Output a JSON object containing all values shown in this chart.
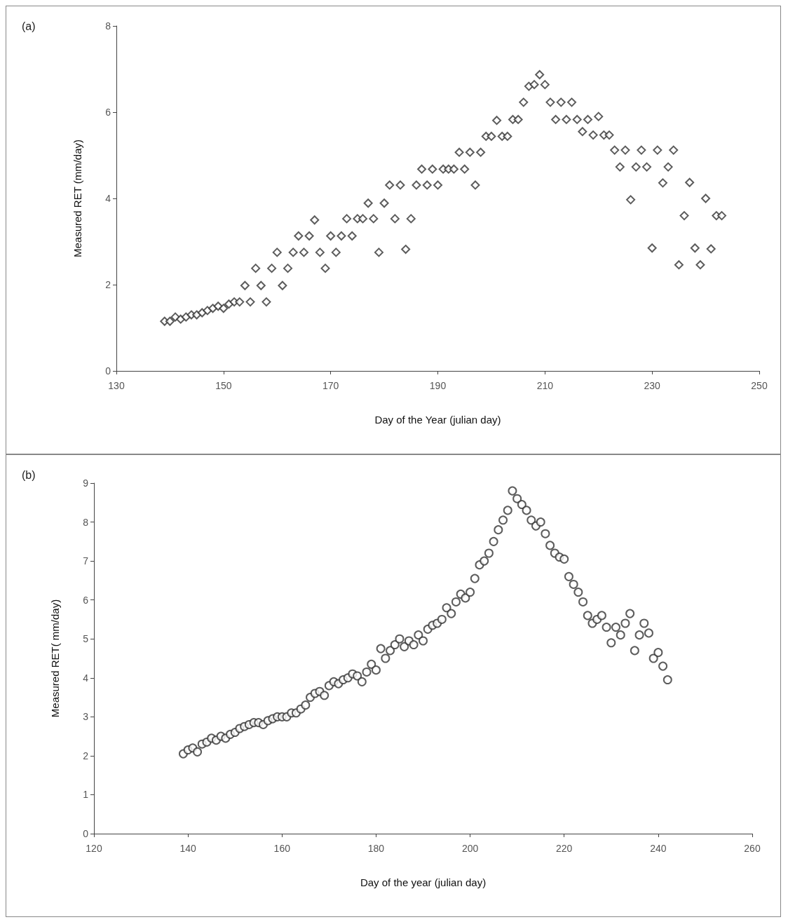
{
  "chart_data": [
    {
      "type": "scatter",
      "xlabel": "Day of the Year (julian day)",
      "ylabel": "Measured RET (mm/day)",
      "annotations": [
        "(a)"
      ],
      "marker": "diamond",
      "grid": false,
      "xlim": [
        130,
        250
      ],
      "xticks": [
        130,
        150,
        170,
        190,
        210,
        230,
        250
      ],
      "ylim": [
        0,
        8
      ],
      "yticks": [
        0,
        2,
        4,
        6,
        8
      ],
      "series": [
        {
          "color": "#333333",
          "x": [
            139,
            140,
            141,
            142,
            143,
            144,
            145,
            146,
            147,
            148,
            149,
            150,
            151,
            152,
            153,
            154,
            155,
            156,
            157,
            158,
            159,
            160,
            161,
            162,
            163,
            164,
            165,
            166,
            167,
            168,
            169,
            170,
            171,
            172,
            173,
            174,
            175,
            176,
            177,
            178,
            179,
            180,
            181,
            182,
            183,
            184,
            185,
            186,
            187,
            188,
            189,
            190,
            191,
            192,
            193,
            194,
            195,
            196,
            197,
            198,
            199,
            200,
            201,
            202,
            203,
            204,
            205,
            206,
            207,
            208,
            209,
            210,
            211,
            212,
            213,
            214,
            215,
            216,
            217,
            218,
            219,
            220,
            221,
            222,
            223,
            224,
            225,
            226,
            227,
            228,
            229,
            230,
            231,
            232,
            233,
            234,
            235,
            236,
            237,
            238,
            239,
            240,
            241,
            242,
            243
          ],
          "values": [
            1.15,
            1.15,
            1.25,
            1.2,
            1.25,
            1.3,
            1.3,
            1.35,
            1.4,
            1.45,
            1.5,
            1.45,
            1.55,
            1.6,
            1.6,
            1.98,
            1.6,
            2.38,
            1.98,
            1.6,
            2.38,
            2.75,
            1.98,
            2.38,
            2.75,
            3.13,
            2.75,
            3.13,
            3.5,
            2.75,
            2.38,
            3.13,
            2.75,
            3.13,
            3.53,
            3.13,
            3.53,
            3.53,
            3.89,
            3.53,
            2.75,
            3.89,
            4.31,
            3.53,
            4.31,
            2.82,
            3.53,
            4.31,
            4.68,
            4.31,
            4.68,
            4.31,
            4.68,
            4.68,
            4.68,
            5.07,
            4.68,
            5.07,
            4.31,
            5.07,
            5.44,
            5.44,
            5.81,
            5.44,
            5.44,
            5.83,
            5.83,
            6.23,
            6.6,
            6.64,
            6.87,
            6.64,
            6.23,
            5.83,
            6.23,
            5.83,
            6.23,
            5.83,
            5.55,
            5.83,
            5.47,
            5.9,
            5.47,
            5.47,
            5.12,
            4.73,
            5.12,
            3.97,
            4.73,
            5.12,
            4.73,
            2.85,
            5.12,
            4.36,
            4.73,
            5.12,
            2.46,
            3.6,
            4.37,
            2.85,
            2.46,
            4.0,
            2.83,
            3.6,
            3.6
          ]
        }
      ]
    },
    {
      "type": "scatter",
      "xlabel": "Day of the year (julian day)",
      "ylabel": "Measured RET( mm/day)",
      "annotations": [
        "(b)"
      ],
      "marker": "circle",
      "grid": false,
      "xlim": [
        120,
        260
      ],
      "xticks": [
        120,
        140,
        160,
        180,
        200,
        220,
        240,
        260
      ],
      "ylim": [
        0,
        9
      ],
      "yticks": [
        0,
        1,
        2,
        3,
        4,
        5,
        6,
        7,
        8,
        9
      ],
      "series": [
        {
          "color": "#333333",
          "x": [
            139,
            140,
            141,
            142,
            143,
            144,
            145,
            146,
            147,
            148,
            149,
            150,
            151,
            152,
            153,
            154,
            155,
            156,
            157,
            158,
            159,
            160,
            161,
            162,
            163,
            164,
            165,
            166,
            167,
            168,
            169,
            170,
            171,
            172,
            173,
            174,
            175,
            176,
            177,
            178,
            179,
            180,
            181,
            182,
            183,
            184,
            185,
            186,
            187,
            188,
            189,
            190,
            191,
            192,
            193,
            194,
            195,
            196,
            197,
            198,
            199,
            200,
            201,
            202,
            203,
            204,
            205,
            206,
            207,
            208,
            209,
            210,
            211,
            212,
            213,
            214,
            215,
            216,
            217,
            218,
            219,
            220,
            221,
            222,
            223,
            224,
            225,
            226,
            227,
            228,
            229,
            230,
            231,
            232,
            233,
            234,
            235,
            236,
            237,
            238,
            239,
            240,
            241,
            242
          ],
          "values": [
            2.05,
            2.15,
            2.2,
            2.1,
            2.3,
            2.35,
            2.45,
            2.4,
            2.5,
            2.45,
            2.55,
            2.6,
            2.7,
            2.75,
            2.8,
            2.85,
            2.85,
            2.8,
            2.9,
            2.95,
            3.0,
            3.0,
            3.0,
            3.1,
            3.1,
            3.2,
            3.3,
            3.5,
            3.6,
            3.65,
            3.55,
            3.8,
            3.9,
            3.85,
            3.95,
            4.0,
            4.1,
            4.05,
            3.9,
            4.15,
            4.35,
            4.2,
            4.75,
            4.5,
            4.7,
            4.85,
            5.0,
            4.8,
            4.95,
            4.85,
            5.1,
            4.95,
            5.25,
            5.35,
            5.4,
            5.5,
            5.8,
            5.65,
            5.95,
            6.15,
            6.05,
            6.2,
            6.55,
            6.9,
            7.0,
            7.2,
            7.5,
            7.8,
            8.05,
            8.3,
            8.8,
            8.6,
            8.45,
            8.3,
            8.05,
            7.9,
            8.0,
            7.7,
            7.4,
            7.2,
            7.1,
            7.05,
            6.6,
            6.4,
            6.2,
            5.95,
            5.6,
            5.4,
            5.5,
            5.6,
            5.3,
            4.9,
            5.3,
            5.1,
            5.4,
            5.65,
            4.7,
            5.1,
            5.4,
            5.15,
            4.5,
            4.65,
            4.3,
            3.95
          ]
        }
      ]
    }
  ]
}
